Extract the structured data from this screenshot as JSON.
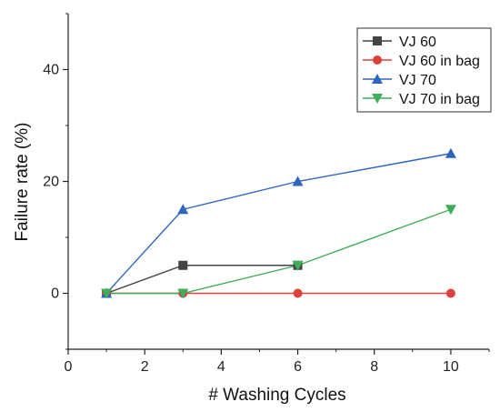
{
  "chart_data": {
    "type": "line",
    "xlabel": "# Washing Cycles",
    "ylabel": "Failure rate (%)",
    "xlim": [
      0,
      11
    ],
    "ylim": [
      -10,
      50
    ],
    "xticks": [
      0,
      2,
      4,
      6,
      8,
      10
    ],
    "yticks": [
      0,
      20,
      40
    ],
    "grid": false,
    "legend_position": "top-right",
    "series": [
      {
        "name": "VJ 60",
        "color": "#444444",
        "marker": "square",
        "x": [
          1,
          3,
          6
        ],
        "y": [
          0,
          5,
          5
        ]
      },
      {
        "name": "VJ 60 in bag",
        "color": "#e0403a",
        "marker": "circle",
        "x": [
          1,
          3,
          6,
          10
        ],
        "y": [
          0,
          0,
          0,
          0
        ]
      },
      {
        "name": "VJ 70",
        "color": "#2f65c0",
        "marker": "triangle-up",
        "x": [
          1,
          3,
          6,
          10
        ],
        "y": [
          0,
          15,
          20,
          25
        ]
      },
      {
        "name": "VJ 70 in bag",
        "color": "#3fae5a",
        "marker": "triangle-down",
        "x": [
          1,
          3,
          6,
          10
        ],
        "y": [
          0,
          0,
          5,
          15
        ]
      }
    ]
  }
}
